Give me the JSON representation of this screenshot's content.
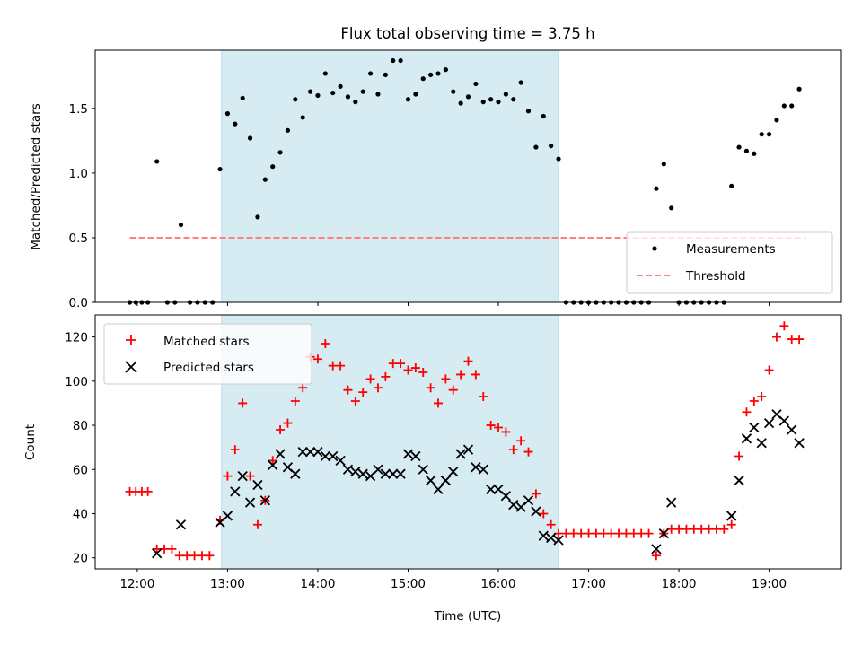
{
  "chart_data": [
    {
      "type": "scatter",
      "title": "Flux total observing time = 3.75 h",
      "xlabel": "",
      "ylabel": "Matched/Predicted stars",
      "xlim": [
        "11:32",
        "19:48"
      ],
      "ylim": [
        0,
        1.95
      ],
      "yticks": [
        0.0,
        0.5,
        1.0,
        1.5
      ],
      "ytick_labels": [
        "0.0",
        "0.5",
        "1.0",
        "1.5"
      ],
      "xticks": [
        "12:00",
        "13:00",
        "14:00",
        "15:00",
        "16:00",
        "17:00",
        "18:00",
        "19:00"
      ],
      "shaded_span": {
        "start": "12:56",
        "end": "16:40",
        "color": "#add8e6"
      },
      "legend": {
        "position": "lower-right",
        "entries": [
          "Measurements",
          "Threshold"
        ]
      },
      "threshold": {
        "name": "Threshold",
        "y": 0.5,
        "x_start": "11:55",
        "x_end": "19:25",
        "color": "#ff7f7f",
        "style": "dashed"
      },
      "series": [
        {
          "name": "Measurements",
          "color": "#000000",
          "marker": "dot",
          "points": [
            [
              "11:55",
              0.0
            ],
            [
              "11:59",
              0.0
            ],
            [
              "12:03",
              0.0
            ],
            [
              "12:07",
              0.0
            ],
            [
              "12:13",
              1.09
            ],
            [
              "12:20",
              0.0
            ],
            [
              "12:25",
              0.0
            ],
            [
              "12:29",
              0.6
            ],
            [
              "12:35",
              0.0
            ],
            [
              "12:40",
              0.0
            ],
            [
              "12:45",
              0.0
            ],
            [
              "12:50",
              0.0
            ],
            [
              "12:55",
              1.03
            ],
            [
              "13:00",
              1.46
            ],
            [
              "13:05",
              1.38
            ],
            [
              "13:10",
              1.58
            ],
            [
              "13:15",
              1.27
            ],
            [
              "13:20",
              0.66
            ],
            [
              "13:25",
              0.95
            ],
            [
              "13:30",
              1.05
            ],
            [
              "13:35",
              1.16
            ],
            [
              "13:40",
              1.33
            ],
            [
              "13:45",
              1.57
            ],
            [
              "13:50",
              1.43
            ],
            [
              "13:55",
              1.63
            ],
            [
              "14:00",
              1.6
            ],
            [
              "14:05",
              1.77
            ],
            [
              "14:10",
              1.62
            ],
            [
              "14:15",
              1.67
            ],
            [
              "14:20",
              1.59
            ],
            [
              "14:25",
              1.55
            ],
            [
              "14:30",
              1.63
            ],
            [
              "14:35",
              1.77
            ],
            [
              "14:40",
              1.61
            ],
            [
              "14:45",
              1.76
            ],
            [
              "14:50",
              1.87
            ],
            [
              "14:55",
              1.87
            ],
            [
              "15:00",
              1.57
            ],
            [
              "15:05",
              1.61
            ],
            [
              "15:10",
              1.73
            ],
            [
              "15:15",
              1.76
            ],
            [
              "15:20",
              1.77
            ],
            [
              "15:25",
              1.8
            ],
            [
              "15:30",
              1.63
            ],
            [
              "15:35",
              1.54
            ],
            [
              "15:40",
              1.59
            ],
            [
              "15:45",
              1.69
            ],
            [
              "15:50",
              1.55
            ],
            [
              "15:55",
              1.57
            ],
            [
              "16:00",
              1.55
            ],
            [
              "16:05",
              1.61
            ],
            [
              "16:10",
              1.57
            ],
            [
              "16:15",
              1.7
            ],
            [
              "16:20",
              1.48
            ],
            [
              "16:25",
              1.2
            ],
            [
              "16:30",
              1.44
            ],
            [
              "16:35",
              1.21
            ],
            [
              "16:40",
              1.11
            ],
            [
              "16:45",
              0.0
            ],
            [
              "16:50",
              0.0
            ],
            [
              "16:55",
              0.0
            ],
            [
              "17:00",
              0.0
            ],
            [
              "17:05",
              0.0
            ],
            [
              "17:10",
              0.0
            ],
            [
              "17:15",
              0.0
            ],
            [
              "17:20",
              0.0
            ],
            [
              "17:25",
              0.0
            ],
            [
              "17:30",
              0.0
            ],
            [
              "17:35",
              0.0
            ],
            [
              "17:40",
              0.0
            ],
            [
              "17:45",
              0.88
            ],
            [
              "17:50",
              1.07
            ],
            [
              "17:55",
              0.73
            ],
            [
              "18:00",
              0.0
            ],
            [
              "18:05",
              0.0
            ],
            [
              "18:10",
              0.0
            ],
            [
              "18:15",
              0.0
            ],
            [
              "18:20",
              0.0
            ],
            [
              "18:25",
              0.0
            ],
            [
              "18:30",
              0.0
            ],
            [
              "18:35",
              0.9
            ],
            [
              "18:40",
              1.2
            ],
            [
              "18:45",
              1.17
            ],
            [
              "18:50",
              1.15
            ],
            [
              "18:55",
              1.3
            ],
            [
              "19:00",
              1.3
            ],
            [
              "19:05",
              1.41
            ],
            [
              "19:10",
              1.52
            ],
            [
              "19:15",
              1.52
            ],
            [
              "19:20",
              1.65
            ]
          ]
        }
      ]
    },
    {
      "type": "scatter",
      "title": "",
      "xlabel": "Time (UTC)",
      "ylabel": "Count",
      "xlim": [
        "11:32",
        "19:48"
      ],
      "ylim": [
        15,
        130
      ],
      "yticks": [
        20,
        40,
        60,
        80,
        100,
        120
      ],
      "ytick_labels": [
        "20",
        "40",
        "60",
        "80",
        "100",
        "120"
      ],
      "xticks": [
        "12:00",
        "13:00",
        "14:00",
        "15:00",
        "16:00",
        "17:00",
        "18:00",
        "19:00"
      ],
      "shaded_span": {
        "start": "12:56",
        "end": "16:40",
        "color": "#add8e6"
      },
      "legend": {
        "position": "upper-left",
        "entries": [
          "Matched stars",
          "Predicted stars"
        ]
      },
      "series": [
        {
          "name": "Matched stars",
          "color": "#ff0000",
          "marker": "plus",
          "points": [
            [
              "11:55",
              50
            ],
            [
              "11:59",
              50
            ],
            [
              "12:03",
              50
            ],
            [
              "12:07",
              50
            ],
            [
              "12:13",
              24
            ],
            [
              "12:18",
              24
            ],
            [
              "12:23",
              24
            ],
            [
              "12:28",
              21
            ],
            [
              "12:33",
              21
            ],
            [
              "12:38",
              21
            ],
            [
              "12:43",
              21
            ],
            [
              "12:48",
              21
            ],
            [
              "12:55",
              37
            ],
            [
              "13:00",
              57
            ],
            [
              "13:05",
              69
            ],
            [
              "13:10",
              90
            ],
            [
              "13:15",
              57
            ],
            [
              "13:20",
              35
            ],
            [
              "13:25",
              46
            ],
            [
              "13:30",
              64
            ],
            [
              "13:35",
              78
            ],
            [
              "13:40",
              81
            ],
            [
              "13:45",
              91
            ],
            [
              "13:50",
              97
            ],
            [
              "13:55",
              111
            ],
            [
              "14:00",
              110
            ],
            [
              "14:05",
              117
            ],
            [
              "14:10",
              107
            ],
            [
              "14:15",
              107
            ],
            [
              "14:20",
              96
            ],
            [
              "14:25",
              91
            ],
            [
              "14:30",
              95
            ],
            [
              "14:35",
              101
            ],
            [
              "14:40",
              97
            ],
            [
              "14:45",
              102
            ],
            [
              "14:50",
              108
            ],
            [
              "14:55",
              108
            ],
            [
              "15:00",
              105
            ],
            [
              "15:05",
              106
            ],
            [
              "15:10",
              104
            ],
            [
              "15:15",
              97
            ],
            [
              "15:20",
              90
            ],
            [
              "15:25",
              101
            ],
            [
              "15:30",
              96
            ],
            [
              "15:35",
              103
            ],
            [
              "15:40",
              109
            ],
            [
              "15:45",
              103
            ],
            [
              "15:50",
              93
            ],
            [
              "15:55",
              80
            ],
            [
              "16:00",
              79
            ],
            [
              "16:05",
              77
            ],
            [
              "16:10",
              69
            ],
            [
              "16:15",
              73
            ],
            [
              "16:20",
              68
            ],
            [
              "16:25",
              49
            ],
            [
              "16:30",
              40
            ],
            [
              "16:35",
              35
            ],
            [
              "16:40",
              31
            ],
            [
              "16:45",
              31
            ],
            [
              "16:50",
              31
            ],
            [
              "16:55",
              31
            ],
            [
              "17:00",
              31
            ],
            [
              "17:05",
              31
            ],
            [
              "17:10",
              31
            ],
            [
              "17:15",
              31
            ],
            [
              "17:20",
              31
            ],
            [
              "17:25",
              31
            ],
            [
              "17:30",
              31
            ],
            [
              "17:35",
              31
            ],
            [
              "17:40",
              31
            ],
            [
              "17:45",
              21
            ],
            [
              "17:50",
              31
            ],
            [
              "17:55",
              33
            ],
            [
              "18:00",
              33
            ],
            [
              "18:05",
              33
            ],
            [
              "18:10",
              33
            ],
            [
              "18:15",
              33
            ],
            [
              "18:20",
              33
            ],
            [
              "18:25",
              33
            ],
            [
              "18:30",
              33
            ],
            [
              "18:35",
              35
            ],
            [
              "18:40",
              66
            ],
            [
              "18:45",
              86
            ],
            [
              "18:50",
              91
            ],
            [
              "18:55",
              93
            ],
            [
              "19:00",
              105
            ],
            [
              "19:05",
              120
            ],
            [
              "19:10",
              125
            ],
            [
              "19:15",
              119
            ],
            [
              "19:20",
              119
            ]
          ]
        },
        {
          "name": "Predicted stars",
          "color": "#000000",
          "marker": "x",
          "points": [
            [
              "12:13",
              22
            ],
            [
              "12:29",
              35
            ],
            [
              "12:55",
              36
            ],
            [
              "13:00",
              39
            ],
            [
              "13:05",
              50
            ],
            [
              "13:10",
              57
            ],
            [
              "13:15",
              45
            ],
            [
              "13:20",
              53
            ],
            [
              "13:25",
              46
            ],
            [
              "13:30",
              62
            ],
            [
              "13:35",
              67
            ],
            [
              "13:40",
              61
            ],
            [
              "13:45",
              58
            ],
            [
              "13:50",
              68
            ],
            [
              "13:55",
              68
            ],
            [
              "14:00",
              68
            ],
            [
              "14:05",
              66
            ],
            [
              "14:10",
              66
            ],
            [
              "14:15",
              64
            ],
            [
              "14:20",
              60
            ],
            [
              "14:25",
              59
            ],
            [
              "14:30",
              58
            ],
            [
              "14:35",
              57
            ],
            [
              "14:40",
              60
            ],
            [
              "14:45",
              58
            ],
            [
              "14:50",
              58
            ],
            [
              "14:55",
              58
            ],
            [
              "15:00",
              67
            ],
            [
              "15:05",
              66
            ],
            [
              "15:10",
              60
            ],
            [
              "15:15",
              55
            ],
            [
              "15:20",
              51
            ],
            [
              "15:25",
              55
            ],
            [
              "15:30",
              59
            ],
            [
              "15:35",
              67
            ],
            [
              "15:40",
              69
            ],
            [
              "15:45",
              61
            ],
            [
              "15:50",
              60
            ],
            [
              "15:55",
              51
            ],
            [
              "16:00",
              51
            ],
            [
              "16:05",
              48
            ],
            [
              "16:10",
              44
            ],
            [
              "16:15",
              43
            ],
            [
              "16:20",
              46
            ],
            [
              "16:25",
              41
            ],
            [
              "16:30",
              30
            ],
            [
              "16:35",
              29
            ],
            [
              "16:40",
              28
            ],
            [
              "17:45",
              24
            ],
            [
              "17:50",
              31
            ],
            [
              "17:55",
              45
            ],
            [
              "18:35",
              39
            ],
            [
              "18:40",
              55
            ],
            [
              "18:45",
              74
            ],
            [
              "18:50",
              79
            ],
            [
              "18:55",
              72
            ],
            [
              "19:00",
              81
            ],
            [
              "19:05",
              85
            ],
            [
              "19:10",
              82
            ],
            [
              "19:15",
              78
            ],
            [
              "19:20",
              72
            ]
          ]
        }
      ]
    }
  ]
}
